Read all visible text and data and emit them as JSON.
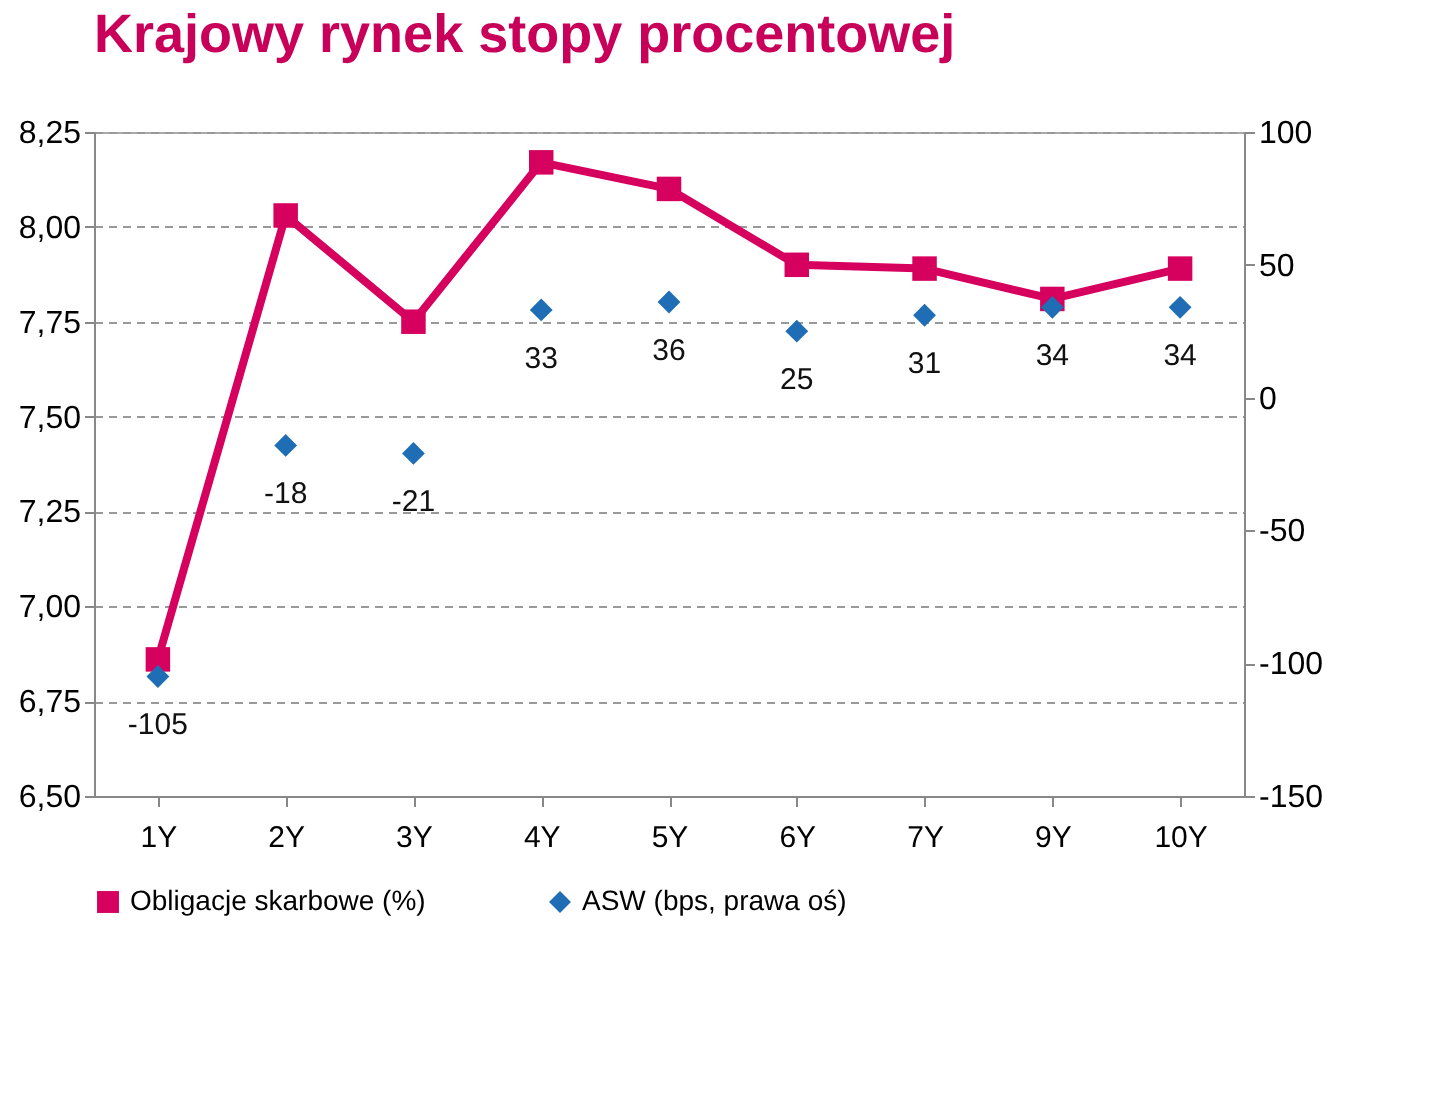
{
  "chart_data": {
    "type": "line",
    "title": "Krajowy rynek stopy procentowej",
    "categories": [
      "1Y",
      "2Y",
      "3Y",
      "4Y",
      "5Y",
      "6Y",
      "7Y",
      "9Y",
      "10Y"
    ],
    "series": [
      {
        "name": "Obligacje skarbowe (%)",
        "color": "#d6005f",
        "marker": "square",
        "values": [
          6.86,
          8.03,
          7.75,
          8.17,
          8.1,
          7.9,
          7.89,
          7.81,
          7.89
        ]
      },
      {
        "name": "ASW (bps, prawa oś)",
        "type": "scatter",
        "color": "#1f6db4",
        "marker": "diamond",
        "axis": "y2",
        "values": [
          -105,
          -18,
          -21,
          33,
          36,
          25,
          31,
          34,
          34
        ],
        "value_labels": [
          "-105",
          "-18",
          "-21",
          "33",
          "36",
          "25",
          "31",
          "34",
          "34"
        ]
      }
    ],
    "ylim": [
      6.5,
      8.25
    ],
    "yticks": [
      {
        "value": 6.5,
        "label": "6,50"
      },
      {
        "value": 6.75,
        "label": "6,75"
      },
      {
        "value": 7,
        "label": "7,00"
      },
      {
        "value": 7.25,
        "label": "7,25"
      },
      {
        "value": 7.5,
        "label": "7,50"
      },
      {
        "value": 7.75,
        "label": "7,75"
      },
      {
        "value": 8,
        "label": "8,00"
      },
      {
        "value": 8.25,
        "label": "8,25"
      }
    ],
    "y2lim": [
      -150,
      100
    ],
    "y2ticks": [
      -150,
      -100,
      -50,
      0,
      50,
      100
    ],
    "grid": "y",
    "legend": "bottom"
  }
}
